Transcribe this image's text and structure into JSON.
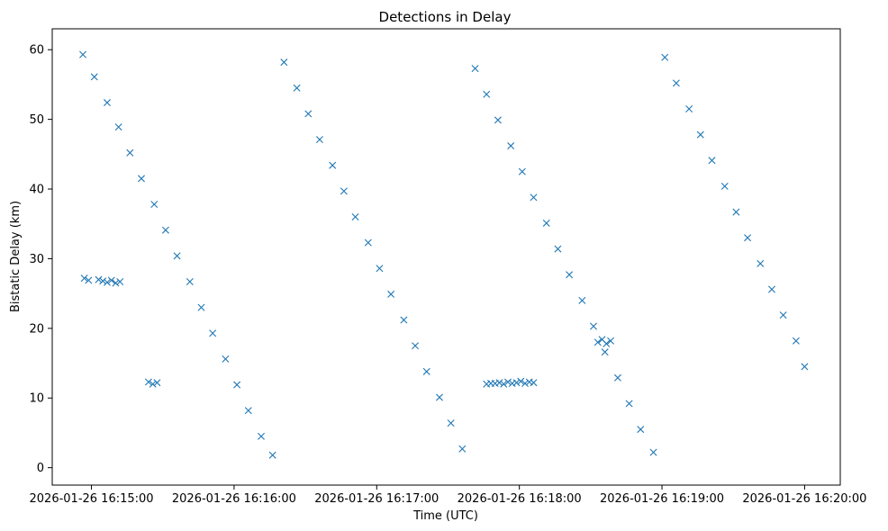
{
  "chart_data": {
    "type": "scatter",
    "title": "Detections in Delay",
    "xlabel": "Time (UTC)",
    "ylabel": "Bistatic Delay (km)",
    "marker": "x",
    "color": "#1f77b4",
    "grid": false,
    "xlim_minutes": [
      -0.275,
      5.25
    ],
    "ylim": [
      -2.5,
      63
    ],
    "x_ticks": [
      {
        "minute": 0,
        "label": "2026-01-26 16:15:00"
      },
      {
        "minute": 1,
        "label": "2026-01-26 16:16:00"
      },
      {
        "minute": 2,
        "label": "2026-01-26 16:17:00"
      },
      {
        "minute": 3,
        "label": "2026-01-26 16:18:00"
      },
      {
        "minute": 4,
        "label": "2026-01-26 16:19:00"
      },
      {
        "minute": 5,
        "label": "2026-01-26 16:20:00"
      }
    ],
    "y_ticks": [
      0,
      10,
      20,
      30,
      40,
      50,
      60
    ],
    "series": [
      {
        "name": "detections",
        "points_note": "x in minutes after 16:15:00, y in km",
        "points": [
          [
            -0.06,
            59.3
          ],
          [
            0.02,
            56.1
          ],
          [
            0.11,
            52.4
          ],
          [
            0.19,
            48.9
          ],
          [
            0.27,
            45.2
          ],
          [
            0.35,
            41.5
          ],
          [
            0.44,
            37.8
          ],
          [
            0.52,
            34.1
          ],
          [
            0.6,
            30.4
          ],
          [
            0.69,
            26.7
          ],
          [
            0.77,
            23.0
          ],
          [
            0.85,
            19.3
          ],
          [
            0.94,
            15.6
          ],
          [
            1.02,
            11.9
          ],
          [
            1.1,
            8.2
          ],
          [
            1.19,
            4.5
          ],
          [
            1.27,
            1.8
          ],
          [
            1.35,
            58.2
          ],
          [
            1.44,
            54.5
          ],
          [
            1.52,
            50.8
          ],
          [
            1.6,
            47.1
          ],
          [
            1.69,
            43.4
          ],
          [
            1.77,
            39.7
          ],
          [
            1.85,
            36.0
          ],
          [
            1.94,
            32.3
          ],
          [
            2.02,
            28.6
          ],
          [
            2.1,
            24.9
          ],
          [
            2.19,
            21.2
          ],
          [
            2.27,
            17.5
          ],
          [
            2.35,
            13.8
          ],
          [
            2.44,
            10.1
          ],
          [
            2.52,
            6.4
          ],
          [
            2.6,
            2.7
          ],
          [
            2.69,
            57.3
          ],
          [
            2.77,
            53.6
          ],
          [
            2.85,
            49.9
          ],
          [
            2.94,
            46.2
          ],
          [
            3.02,
            42.5
          ],
          [
            3.1,
            38.8
          ],
          [
            3.19,
            35.1
          ],
          [
            3.27,
            31.4
          ],
          [
            3.35,
            27.7
          ],
          [
            3.44,
            24.0
          ],
          [
            3.52,
            20.3
          ],
          [
            3.6,
            16.6
          ],
          [
            3.69,
            12.9
          ],
          [
            3.77,
            9.2
          ],
          [
            3.85,
            5.5
          ],
          [
            3.94,
            2.2
          ],
          [
            4.02,
            58.9
          ],
          [
            4.1,
            55.2
          ],
          [
            4.19,
            51.5
          ],
          [
            4.27,
            47.8
          ],
          [
            4.35,
            44.1
          ],
          [
            4.44,
            40.4
          ],
          [
            4.52,
            36.7
          ],
          [
            4.6,
            33.0
          ],
          [
            4.69,
            29.3
          ],
          [
            4.77,
            25.6
          ],
          [
            4.85,
            21.9
          ],
          [
            4.94,
            18.2
          ],
          [
            5.0,
            14.5
          ],
          [
            0.05,
            27.0
          ],
          [
            0.08,
            26.8
          ],
          [
            0.11,
            26.6
          ],
          [
            0.14,
            26.9
          ],
          [
            0.17,
            26.5
          ],
          [
            0.2,
            26.7
          ],
          [
            -0.05,
            27.2
          ],
          [
            -0.02,
            26.9
          ],
          [
            2.83,
            12.1
          ],
          [
            2.86,
            12.2
          ],
          [
            2.89,
            12.0
          ],
          [
            2.92,
            12.3
          ],
          [
            2.95,
            12.1
          ],
          [
            2.98,
            12.2
          ],
          [
            3.01,
            12.4
          ],
          [
            3.04,
            12.1
          ],
          [
            3.07,
            12.3
          ],
          [
            3.1,
            12.2
          ],
          [
            2.77,
            12.0
          ],
          [
            2.8,
            12.1
          ],
          [
            0.4,
            12.3
          ],
          [
            0.43,
            12.0
          ],
          [
            0.46,
            12.2
          ],
          [
            3.55,
            18.0
          ],
          [
            3.58,
            18.4
          ],
          [
            3.61,
            17.8
          ],
          [
            3.64,
            18.2
          ]
        ]
      }
    ]
  }
}
